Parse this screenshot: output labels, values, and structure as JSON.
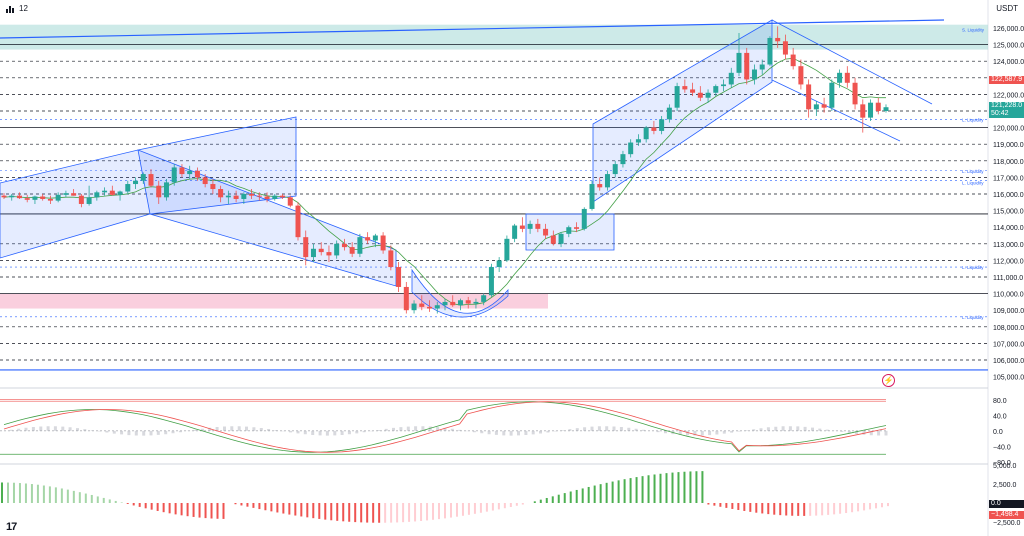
{
  "header": {
    "interval": "12",
    "currency": "USDT",
    "logo_text": "17"
  },
  "price_axis": {
    "ticks": [
      "126,000.0",
      "125,000.0",
      "124,000.0",
      "123,000.0",
      "122,000.0",
      "121,000.0",
      "120,000.0",
      "119,000.0",
      "118,000.0",
      "117,000.0",
      "116,000.0",
      "115,000.0",
      "114,000.0",
      "113,000.0",
      "112,000.0",
      "111,000.0",
      "110,000.0",
      "109,000.0",
      "108,000.0",
      "107,000.0",
      "106,000.0",
      "105,000.0"
    ]
  },
  "tags": {
    "upper_price": "122,587.9",
    "last_price": "121,228.0",
    "countdown": "50:42",
    "osc_zero": "0.0",
    "osc_value": "−1,498.4"
  },
  "liquidity_labels": {
    "top": "S. Liquidity",
    "label": "L. Liquidity"
  },
  "osc_axis": {
    "ticks": [
      "80.0",
      "40.0",
      "0.0",
      "−40.0",
      "−80.0"
    ]
  },
  "hist_axis": {
    "ticks": [
      "5,000.0",
      "2,500.0",
      "−2,500.0"
    ]
  },
  "colors": {
    "up": "#26a69a",
    "down": "#ef5350",
    "channel": "#2962ff",
    "band_top": "#b2dfdb",
    "band_bottom": "#f8bbd0"
  },
  "icons": {
    "bolt": "lightning-icon"
  },
  "chart_data": {
    "type": "candlestick",
    "ylim": [
      105000,
      126200
    ],
    "candles": [
      [
        115900,
        116050,
        115700,
        115800
      ],
      [
        115800,
        116000,
        115600,
        115900
      ],
      [
        115900,
        116100,
        115700,
        115750
      ],
      [
        115750,
        115950,
        115500,
        115650
      ],
      [
        115650,
        115900,
        115400,
        115850
      ],
      [
        115850,
        116000,
        115600,
        115700
      ],
      [
        115700,
        115900,
        115400,
        115600
      ],
      [
        115600,
        116100,
        115500,
        115950
      ],
      [
        115950,
        116200,
        115800,
        116050
      ],
      [
        116050,
        116300,
        115900,
        115900
      ],
      [
        115900,
        116000,
        115200,
        115400
      ],
      [
        115400,
        116500,
        115300,
        115800
      ],
      [
        115800,
        116200,
        115600,
        116100
      ],
      [
        116100,
        116400,
        115900,
        116200
      ],
      [
        116200,
        116500,
        115900,
        115950
      ],
      [
        115950,
        116200,
        115600,
        116150
      ],
      [
        116150,
        116800,
        116000,
        116600
      ],
      [
        116600,
        117000,
        116300,
        116800
      ],
      [
        116800,
        117300,
        116600,
        117200
      ],
      [
        117200,
        117500,
        116400,
        116500
      ],
      [
        116500,
        116800,
        115400,
        115800
      ],
      [
        115800,
        116900,
        115600,
        116700
      ],
      [
        116700,
        117800,
        116500,
        117600
      ],
      [
        117600,
        117800,
        117000,
        117200
      ],
      [
        117200,
        117700,
        116900,
        117400
      ],
      [
        117400,
        117600,
        116800,
        117000
      ],
      [
        117000,
        117200,
        116400,
        116600
      ],
      [
        116600,
        116900,
        116000,
        116300
      ],
      [
        116300,
        116500,
        115500,
        115800
      ],
      [
        115800,
        116200,
        115400,
        115900
      ],
      [
        115900,
        116200,
        115500,
        115700
      ],
      [
        115700,
        116100,
        115400,
        116000
      ],
      [
        116000,
        116300,
        115700,
        115900
      ],
      [
        115900,
        116100,
        115600,
        115850
      ],
      [
        115850,
        116100,
        115500,
        115700
      ],
      [
        115700,
        116000,
        115600,
        115900
      ],
      [
        115900,
        116000,
        115700,
        115800
      ],
      [
        115800,
        115900,
        115200,
        115300
      ],
      [
        115300,
        115500,
        113200,
        113400
      ],
      [
        113400,
        113800,
        111700,
        112200
      ],
      [
        112200,
        113000,
        111900,
        112700
      ],
      [
        112700,
        113100,
        112300,
        112500
      ],
      [
        112500,
        112900,
        111900,
        112300
      ],
      [
        112300,
        113200,
        112100,
        113000
      ],
      [
        113000,
        113300,
        112600,
        112800
      ],
      [
        112800,
        113100,
        112200,
        112400
      ],
      [
        112400,
        113600,
        112200,
        113400
      ],
      [
        113400,
        113700,
        113000,
        113200
      ],
      [
        113200,
        113600,
        112800,
        113500
      ],
      [
        113500,
        113700,
        112400,
        112600
      ],
      [
        112600,
        112900,
        111400,
        111600
      ],
      [
        111600,
        111900,
        110100,
        110400
      ],
      [
        110400,
        110700,
        108800,
        109000
      ],
      [
        109000,
        109600,
        108800,
        109400
      ],
      [
        109400,
        109900,
        109000,
        109200
      ],
      [
        109200,
        109600,
        108900,
        109100
      ],
      [
        109100,
        109500,
        108800,
        109300
      ],
      [
        109300,
        109700,
        109000,
        109500
      ],
      [
        109500,
        109900,
        109200,
        109300
      ],
      [
        109300,
        109700,
        109000,
        109600
      ],
      [
        109600,
        109800,
        109100,
        109400
      ],
      [
        109400,
        109700,
        109100,
        109500
      ],
      [
        109500,
        110000,
        109300,
        109900
      ],
      [
        109900,
        111800,
        109800,
        111600
      ],
      [
        111600,
        112200,
        111300,
        112000
      ],
      [
        112000,
        113500,
        111900,
        113300
      ],
      [
        113300,
        114200,
        113100,
        114100
      ],
      [
        114100,
        114600,
        113700,
        113900
      ],
      [
        113900,
        114400,
        113600,
        114200
      ],
      [
        114200,
        114500,
        113700,
        113900
      ],
      [
        113900,
        114200,
        113300,
        113500
      ],
      [
        113500,
        113800,
        112900,
        113000
      ],
      [
        113000,
        113700,
        112800,
        113600
      ],
      [
        113600,
        114100,
        113400,
        114000
      ],
      [
        114000,
        114300,
        113700,
        113900
      ],
      [
        113900,
        115200,
        113800,
        115100
      ],
      [
        115100,
        116800,
        115000,
        116600
      ],
      [
        116600,
        117000,
        116200,
        116400
      ],
      [
        116400,
        117400,
        116200,
        117200
      ],
      [
        117200,
        118000,
        117000,
        117800
      ],
      [
        117800,
        118600,
        117600,
        118400
      ],
      [
        118400,
        119300,
        118200,
        119100
      ],
      [
        119100,
        119600,
        118900,
        119300
      ],
      [
        119300,
        120100,
        119100,
        120000
      ],
      [
        120000,
        120400,
        119600,
        119800
      ],
      [
        119800,
        120700,
        119600,
        120500
      ],
      [
        120500,
        121400,
        120300,
        121200
      ],
      [
        121200,
        122700,
        121000,
        122500
      ],
      [
        122500,
        122900,
        122100,
        122300
      ],
      [
        122300,
        122700,
        121900,
        122100
      ],
      [
        122100,
        122500,
        121600,
        121800
      ],
      [
        121800,
        122300,
        121500,
        122100
      ],
      [
        122100,
        122600,
        121900,
        122500
      ],
      [
        122500,
        122900,
        122200,
        122600
      ],
      [
        122600,
        123600,
        122400,
        123300
      ],
      [
        123300,
        125700,
        123100,
        124500
      ],
      [
        124500,
        124800,
        122600,
        122900
      ],
      [
        122900,
        123800,
        122600,
        123500
      ],
      [
        123500,
        124100,
        123200,
        123800
      ],
      [
        123800,
        125500,
        123700,
        125400
      ],
      [
        125400,
        126100,
        124800,
        125200
      ],
      [
        125200,
        125600,
        124100,
        124400
      ],
      [
        124400,
        124800,
        123500,
        123700
      ],
      [
        123700,
        124100,
        122300,
        122600
      ],
      [
        122600,
        122900,
        120600,
        121100
      ],
      [
        121100,
        121600,
        120700,
        121400
      ],
      [
        121400,
        121800,
        120900,
        121200
      ],
      [
        121200,
        122900,
        121000,
        122700
      ],
      [
        122700,
        123500,
        122400,
        123300
      ],
      [
        123300,
        123700,
        122400,
        122700
      ],
      [
        122700,
        123000,
        121100,
        121400
      ],
      [
        121400,
        121700,
        119700,
        120600
      ],
      [
        120600,
        121700,
        120400,
        121500
      ],
      [
        121500,
        121800,
        120800,
        121000
      ],
      [
        121000,
        121400,
        120900,
        121228
      ]
    ],
    "oscillator": {
      "ylim": [
        -80,
        100
      ],
      "ticks": [
        80,
        40,
        0,
        -40,
        -80
      ]
    },
    "histogram": {
      "last": -1498.4
    }
  }
}
